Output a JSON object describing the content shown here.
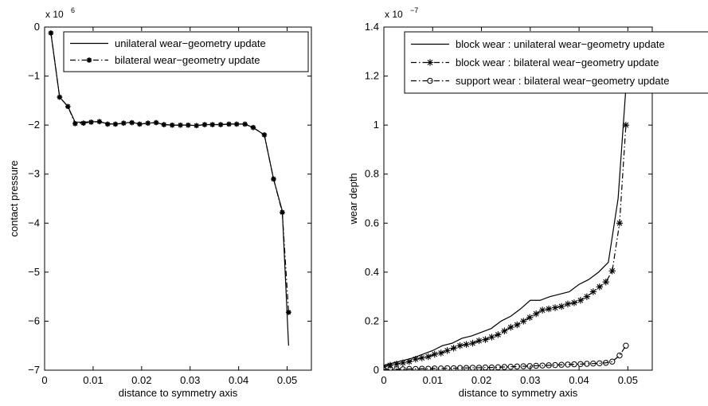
{
  "chart_data": [
    {
      "type": "line",
      "exponent_label": "x 10",
      "exponent_power": "6",
      "xlabel": "distance to symmetry axis",
      "ylabel": "contact pressure",
      "xlim": [
        0,
        0.055
      ],
      "ylim": [
        -7,
        0
      ],
      "xticks": [
        0,
        0.01,
        0.02,
        0.03,
        0.04,
        0.05
      ],
      "xtick_labels": [
        "0",
        "0.01",
        "0.02",
        "0.03",
        "0.04",
        "0.05"
      ],
      "yticks": [
        0,
        -1,
        -2,
        -3,
        -4,
        -5,
        -6,
        -7
      ],
      "ytick_labels": [
        "0",
        "−1",
        "−2",
        "−3",
        "−4",
        "−5",
        "−6",
        "−7"
      ],
      "legend_position": "top-right",
      "series": [
        {
          "name": "unilateral wear−geometry update",
          "style": "solid",
          "marker": "none",
          "x": [
            0.0013,
            0.0031,
            0.0048,
            0.0063,
            0.008,
            0.0096,
            0.0113,
            0.013,
            0.0146,
            0.0163,
            0.018,
            0.0196,
            0.0213,
            0.023,
            0.0246,
            0.0263,
            0.028,
            0.0296,
            0.0313,
            0.033,
            0.0346,
            0.0363,
            0.038,
            0.0396,
            0.0413,
            0.043,
            0.0453,
            0.0472,
            0.049,
            0.0503
          ],
          "y": [
            -0.12,
            -1.43,
            -1.62,
            -1.94,
            -1.94,
            -1.93,
            -1.93,
            -1.97,
            -1.98,
            -1.96,
            -1.94,
            -1.98,
            -1.96,
            -1.95,
            -1.99,
            -2.0,
            -2.0,
            -2.0,
            -2.01,
            -1.99,
            -1.99,
            -1.99,
            -1.98,
            -1.98,
            -1.98,
            -2.05,
            -2.2,
            -3.1,
            -3.75,
            -6.5
          ]
        },
        {
          "name": "bilateral wear−geometry update",
          "style": "dash-dot",
          "marker": "star",
          "x": [
            0.0013,
            0.0031,
            0.0048,
            0.0063,
            0.008,
            0.0096,
            0.0113,
            0.013,
            0.0146,
            0.0163,
            0.018,
            0.0196,
            0.0213,
            0.023,
            0.0246,
            0.0263,
            0.028,
            0.0296,
            0.0313,
            0.033,
            0.0346,
            0.0363,
            0.038,
            0.0396,
            0.0413,
            0.043,
            0.0453,
            0.0472,
            0.049,
            0.0503
          ],
          "y": [
            -0.12,
            -1.43,
            -1.62,
            -1.97,
            -1.96,
            -1.94,
            -1.93,
            -1.98,
            -1.98,
            -1.96,
            -1.95,
            -1.98,
            -1.96,
            -1.95,
            -1.99,
            -2.0,
            -2.0,
            -2.0,
            -2.01,
            -1.99,
            -1.99,
            -1.99,
            -1.98,
            -1.98,
            -1.98,
            -2.05,
            -2.2,
            -3.1,
            -3.78,
            -5.82
          ]
        }
      ]
    },
    {
      "type": "line",
      "exponent_label": "x 10",
      "exponent_power": "−7",
      "xlabel": "distance to symmetry axis",
      "ylabel": "wear depth",
      "xlim": [
        0,
        0.055
      ],
      "ylim": [
        0,
        1.4
      ],
      "xticks": [
        0,
        0.01,
        0.02,
        0.03,
        0.04,
        0.05
      ],
      "xtick_labels": [
        "0",
        "0.01",
        "0.02",
        "0.03",
        "0.04",
        "0.05"
      ],
      "yticks": [
        0,
        0.2,
        0.4,
        0.6,
        0.8,
        1,
        1.2,
        1.4
      ],
      "ytick_labels": [
        "0",
        "0.2",
        "0.4",
        "0.6",
        "0.8",
        "1",
        "1.2",
        "1.4"
      ],
      "legend_position": "top-right",
      "series": [
        {
          "name": "block wear : unilateral wear−geometry update",
          "style": "solid",
          "marker": "none",
          "x": [
            0.0,
            0.002,
            0.004,
            0.006,
            0.008,
            0.01,
            0.012,
            0.014,
            0.016,
            0.018,
            0.02,
            0.022,
            0.024,
            0.026,
            0.028,
            0.03,
            0.032,
            0.034,
            0.036,
            0.038,
            0.04,
            0.042,
            0.044,
            0.046,
            0.048,
            0.0503
          ],
          "y": [
            0.02,
            0.03,
            0.04,
            0.05,
            0.065,
            0.08,
            0.1,
            0.11,
            0.13,
            0.14,
            0.155,
            0.17,
            0.2,
            0.22,
            0.25,
            0.285,
            0.285,
            0.3,
            0.31,
            0.32,
            0.35,
            0.37,
            0.4,
            0.44,
            0.7,
            1.35
          ]
        },
        {
          "name": "block wear : bilateral wear−geometry update",
          "style": "dash-dot",
          "marker": "asterisk",
          "x": [
            0.0,
            0.0013,
            0.0026,
            0.0039,
            0.0052,
            0.0065,
            0.0078,
            0.0091,
            0.0104,
            0.0117,
            0.013,
            0.0143,
            0.0156,
            0.0169,
            0.0182,
            0.0195,
            0.0208,
            0.0221,
            0.0234,
            0.0247,
            0.026,
            0.0273,
            0.0286,
            0.0299,
            0.0312,
            0.0325,
            0.0338,
            0.0351,
            0.0364,
            0.0377,
            0.039,
            0.0403,
            0.0416,
            0.0429,
            0.0442,
            0.0455,
            0.0468,
            0.0483,
            0.0496
          ],
          "y": [
            0.015,
            0.02,
            0.025,
            0.03,
            0.035,
            0.045,
            0.05,
            0.055,
            0.065,
            0.07,
            0.08,
            0.09,
            0.1,
            0.105,
            0.11,
            0.12,
            0.125,
            0.135,
            0.145,
            0.16,
            0.175,
            0.185,
            0.2,
            0.215,
            0.23,
            0.245,
            0.25,
            0.255,
            0.26,
            0.27,
            0.275,
            0.285,
            0.3,
            0.32,
            0.34,
            0.36,
            0.405,
            0.6,
            1.0
          ]
        },
        {
          "name": "support wear : bilateral wear−geometry update",
          "style": "dash-dot",
          "marker": "circle",
          "x": [
            0.0,
            0.0013,
            0.0026,
            0.0039,
            0.0052,
            0.0065,
            0.0078,
            0.0091,
            0.0104,
            0.0117,
            0.013,
            0.0143,
            0.0156,
            0.0169,
            0.0182,
            0.0195,
            0.0208,
            0.0221,
            0.0234,
            0.0247,
            0.026,
            0.0273,
            0.0286,
            0.0299,
            0.0312,
            0.0325,
            0.0338,
            0.0351,
            0.0364,
            0.0377,
            0.039,
            0.0403,
            0.0416,
            0.0429,
            0.0442,
            0.0455,
            0.0468,
            0.0483,
            0.0496
          ],
          "y": [
            0.003,
            0.003,
            0.004,
            0.004,
            0.005,
            0.005,
            0.006,
            0.006,
            0.007,
            0.007,
            0.008,
            0.008,
            0.009,
            0.009,
            0.01,
            0.01,
            0.011,
            0.011,
            0.012,
            0.013,
            0.014,
            0.015,
            0.016,
            0.017,
            0.018,
            0.019,
            0.02,
            0.021,
            0.022,
            0.023,
            0.024,
            0.025,
            0.026,
            0.027,
            0.028,
            0.03,
            0.035,
            0.06,
            0.1
          ]
        }
      ]
    }
  ]
}
